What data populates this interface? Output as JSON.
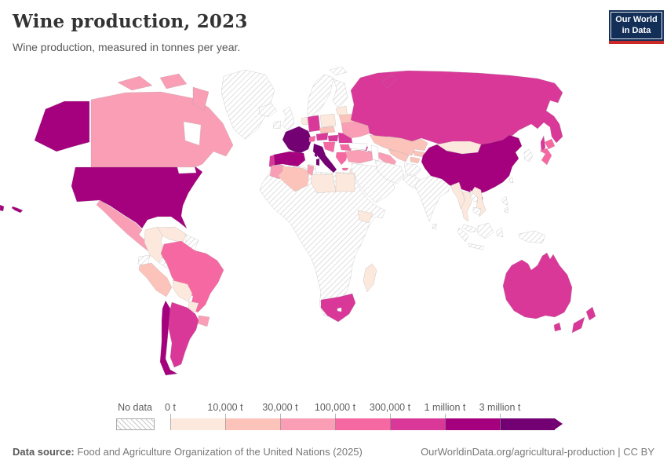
{
  "header": {
    "title": "Wine production, 2023",
    "subtitle": "Wine production, measured in tonnes per year.",
    "logo": {
      "line1": "Our World",
      "line2": "in Data",
      "bg_color": "#132f58",
      "accent_color": "#cb2828"
    }
  },
  "legend": {
    "no_data_label": "No data",
    "tick_labels": [
      "0 t",
      "10,000 t",
      "30,000 t",
      "100,000 t",
      "300,000 t",
      "1 million t",
      "3 million t"
    ]
  },
  "footer": {
    "source_label": "Data source:",
    "source_text": " Food and Agriculture Organization of the United Nations (2025)",
    "right_text": "OurWorldinData.org/agricultural-production | CC BY"
  },
  "chart_data": {
    "type": "choropleth-map",
    "title": "Wine production, 2023",
    "unit": "tonnes per year",
    "legend_position": "bottom",
    "no_data": {
      "label": "No data",
      "pattern": "diagonal-hatch",
      "hatch_color": "#cfcfcf"
    },
    "buckets": [
      {
        "label": "0 t",
        "color": "#fce8dc"
      },
      {
        "label": "10,000 t",
        "color": "#fbc3ba"
      },
      {
        "label": "30,000 t",
        "color": "#f99eb5"
      },
      {
        "label": "100,000 t",
        "color": "#f668a1"
      },
      {
        "label": "300,000 t",
        "color": "#d93899"
      },
      {
        "label": "1 million t",
        "color": "#a5017e"
      },
      {
        "label": "3 million t",
        "color": "#730173"
      }
    ],
    "countries": [
      {
        "id": "united-states",
        "name": "United States",
        "bucket": "1 million t"
      },
      {
        "id": "canada",
        "name": "Canada",
        "bucket": "30,000 t"
      },
      {
        "id": "mexico",
        "name": "Mexico",
        "bucket": "30,000 t"
      },
      {
        "id": "greenland",
        "name": "Greenland",
        "bucket": "no-data"
      },
      {
        "id": "cuba",
        "name": "Cuba",
        "bucket": "0 t"
      },
      {
        "id": "hispaniola",
        "name": "Dominican Republic",
        "bucket": "0 t"
      },
      {
        "id": "central-america",
        "name": "Central America",
        "bucket": "no-data"
      },
      {
        "id": "colombia",
        "name": "Colombia",
        "bucket": "0 t"
      },
      {
        "id": "venezuela",
        "name": "Venezuela",
        "bucket": "0 t"
      },
      {
        "id": "guyanas",
        "name": "Guyana and Suriname",
        "bucket": "no-data"
      },
      {
        "id": "ecuador",
        "name": "Ecuador",
        "bucket": "no-data"
      },
      {
        "id": "peru",
        "name": "Peru",
        "bucket": "10,000 t"
      },
      {
        "id": "brazil",
        "name": "Brazil",
        "bucket": "100,000 t"
      },
      {
        "id": "bolivia",
        "name": "Bolivia",
        "bucket": "0 t"
      },
      {
        "id": "paraguay",
        "name": "Paraguay",
        "bucket": "0 t"
      },
      {
        "id": "uruguay",
        "name": "Uruguay",
        "bucket": "30,000 t"
      },
      {
        "id": "argentina",
        "name": "Argentina",
        "bucket": "300,000 t"
      },
      {
        "id": "chile",
        "name": "Chile",
        "bucket": "1 million t"
      },
      {
        "id": "iceland",
        "name": "Iceland",
        "bucket": "no-data"
      },
      {
        "id": "ireland",
        "name": "Ireland",
        "bucket": "no-data"
      },
      {
        "id": "uk",
        "name": "United Kingdom",
        "bucket": "no-data"
      },
      {
        "id": "norway-sweden",
        "name": "Norway and Sweden",
        "bucket": "no-data"
      },
      {
        "id": "finland",
        "name": "Finland",
        "bucket": "no-data"
      },
      {
        "id": "svalbard",
        "name": "Svalbard",
        "bucket": "no-data"
      },
      {
        "id": "denmark",
        "name": "Denmark",
        "bucket": "0 t"
      },
      {
        "id": "baltics",
        "name": "Baltic states",
        "bucket": "0 t"
      },
      {
        "id": "belarus",
        "name": "Belarus",
        "bucket": "10,000 t"
      },
      {
        "id": "poland",
        "name": "Poland",
        "bucket": "0 t"
      },
      {
        "id": "germany",
        "name": "Germany",
        "bucket": "300,000 t"
      },
      {
        "id": "benelux",
        "name": "Belgium and Netherlands",
        "bucket": "0 t"
      },
      {
        "id": "france",
        "name": "France",
        "bucket": "3 million t"
      },
      {
        "id": "switzerland",
        "name": "Switzerland",
        "bucket": "100,000 t"
      },
      {
        "id": "austria",
        "name": "Austria",
        "bucket": "300,000 t"
      },
      {
        "id": "czech-slovakia",
        "name": "Czechia and Slovakia",
        "bucket": "10,000 t"
      },
      {
        "id": "spain",
        "name": "Spain",
        "bucket": "1 million t"
      },
      {
        "id": "portugal",
        "name": "Portugal",
        "bucket": "300,000 t"
      },
      {
        "id": "italy",
        "name": "Italy",
        "bucket": "3 million t"
      },
      {
        "id": "hungary",
        "name": "Hungary",
        "bucket": "300,000 t"
      },
      {
        "id": "balkans",
        "name": "Western Balkans",
        "bucket": "100,000 t"
      },
      {
        "id": "romania",
        "name": "Romania",
        "bucket": "300,000 t"
      },
      {
        "id": "bulgaria",
        "name": "Bulgaria",
        "bucket": "100,000 t"
      },
      {
        "id": "greece",
        "name": "Greece",
        "bucket": "100,000 t"
      },
      {
        "id": "moldova",
        "name": "Moldova",
        "bucket": "300,000 t"
      },
      {
        "id": "ukraine",
        "name": "Ukraine",
        "bucket": "30,000 t"
      },
      {
        "id": "russia",
        "name": "Russia",
        "bucket": "300,000 t"
      },
      {
        "id": "kazakhstan",
        "name": "Kazakhstan",
        "bucket": "10,000 t"
      },
      {
        "id": "uzbekistan",
        "name": "Uzbekistan",
        "bucket": "10,000 t"
      },
      {
        "id": "turkmenistan",
        "name": "Turkmenistan",
        "bucket": "30,000 t"
      },
      {
        "id": "kyrgyzstan",
        "name": "Kyrgyzstan",
        "bucket": "10,000 t"
      },
      {
        "id": "tajikistan",
        "name": "Tajikistan",
        "bucket": "10,000 t"
      },
      {
        "id": "georgia",
        "name": "Georgia",
        "bucket": "300,000 t"
      },
      {
        "id": "armenia",
        "name": "Armenia",
        "bucket": "30,000 t"
      },
      {
        "id": "azerbaijan",
        "name": "Azerbaijan",
        "bucket": "30,000 t"
      },
      {
        "id": "turkey",
        "name": "Turkey",
        "bucket": "30,000 t"
      },
      {
        "id": "israel",
        "name": "Israel",
        "bucket": "0 t"
      },
      {
        "id": "middle-east",
        "name": "Arabian Peninsula and Levant",
        "bucket": "no-data"
      },
      {
        "id": "iran",
        "name": "Iran",
        "bucket": "no-data"
      },
      {
        "id": "afghanistan",
        "name": "Afghanistan",
        "bucket": "no-data"
      },
      {
        "id": "pakistan",
        "name": "Pakistan",
        "bucket": "no-data"
      },
      {
        "id": "india",
        "name": "India",
        "bucket": "no-data"
      },
      {
        "id": "sri-lanka",
        "name": "Sri Lanka",
        "bucket": "no-data"
      },
      {
        "id": "mongolia",
        "name": "Mongolia",
        "bucket": "0 t"
      },
      {
        "id": "china",
        "name": "China",
        "bucket": "1 million t"
      },
      {
        "id": "taiwan",
        "name": "Taiwan",
        "bucket": "no-data"
      },
      {
        "id": "korea",
        "name": "Korea",
        "bucket": "no-data"
      },
      {
        "id": "japan",
        "name": "Japan",
        "bucket": "100,000 t"
      },
      {
        "id": "myanmar",
        "name": "Myanmar",
        "bucket": "0 t"
      },
      {
        "id": "thailand",
        "name": "Thailand",
        "bucket": "0 t"
      },
      {
        "id": "laos",
        "name": "Laos",
        "bucket": "no-data"
      },
      {
        "id": "vietnam",
        "name": "Vietnam",
        "bucket": "0 t"
      },
      {
        "id": "cambodia",
        "name": "Cambodia",
        "bucket": "no-data"
      },
      {
        "id": "malaysia",
        "name": "Malaysia",
        "bucket": "no-data"
      },
      {
        "id": "indonesia",
        "name": "Indonesia",
        "bucket": "no-data"
      },
      {
        "id": "philippines",
        "name": "Philippines",
        "bucket": "no-data"
      },
      {
        "id": "new-guinea",
        "name": "Papua New Guinea",
        "bucket": "no-data"
      },
      {
        "id": "morocco",
        "name": "Morocco",
        "bucket": "30,000 t"
      },
      {
        "id": "algeria",
        "name": "Algeria",
        "bucket": "10,000 t"
      },
      {
        "id": "tunisia",
        "name": "Tunisia",
        "bucket": "30,000 t"
      },
      {
        "id": "libya",
        "name": "Libya",
        "bucket": "0 t"
      },
      {
        "id": "egypt",
        "name": "Egypt",
        "bucket": "0 t"
      },
      {
        "id": "ethiopia",
        "name": "Ethiopia",
        "bucket": "0 t"
      },
      {
        "id": "africa-other",
        "name": "Rest of Africa",
        "bucket": "no-data"
      },
      {
        "id": "south-africa",
        "name": "South Africa",
        "bucket": "300,000 t"
      },
      {
        "id": "madagascar",
        "name": "Madagascar",
        "bucket": "0 t"
      },
      {
        "id": "australia",
        "name": "Australia",
        "bucket": "300,000 t"
      },
      {
        "id": "new-zealand",
        "name": "New Zealand",
        "bucket": "300,000 t"
      }
    ]
  }
}
